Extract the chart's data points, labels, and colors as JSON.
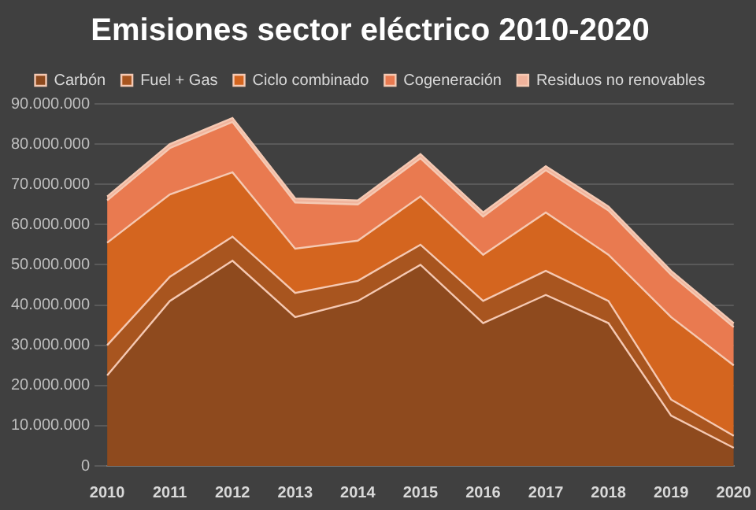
{
  "chart_data": {
    "type": "area",
    "title": "Emisiones sector eléctrico 2010-2020",
    "stacked": true,
    "categories": [
      "2010",
      "2011",
      "2012",
      "2013",
      "2014",
      "2015",
      "2016",
      "2017",
      "2018",
      "2019",
      "2020"
    ],
    "series": [
      {
        "name": "Carbón",
        "color": "#8e4a1e",
        "values": [
          22500000,
          41000000,
          51000000,
          37000000,
          41000000,
          50000000,
          35500000,
          42500000,
          35500000,
          12500000,
          4500000
        ]
      },
      {
        "name": "Fuel + Gas",
        "color": "#a8551f",
        "values": [
          7500000,
          6000000,
          6000000,
          6000000,
          5000000,
          5000000,
          5500000,
          6000000,
          5500000,
          4000000,
          3000000
        ]
      },
      {
        "name": "Ciclo combinado",
        "color": "#d4651f",
        "values": [
          25500000,
          20500000,
          16000000,
          11000000,
          10000000,
          12000000,
          11500000,
          14500000,
          11500000,
          20500000,
          17500000
        ]
      },
      {
        "name": "Cogeneración",
        "color": "#e97a50",
        "values": [
          10500000,
          11500000,
          12500000,
          11500000,
          9000000,
          9500000,
          9500000,
          10500000,
          11000000,
          10500000,
          9500000
        ]
      },
      {
        "name": "Residuos no renovables",
        "color": "#f0b39c",
        "values": [
          1000000,
          1000000,
          1000000,
          1000000,
          1000000,
          1000000,
          1000000,
          1000000,
          1000000,
          1000000,
          1000000
        ]
      }
    ],
    "ylim": [
      0,
      90000000
    ],
    "yticks": [
      0,
      {
        "value": 10000000,
        "label": "10.000.000"
      },
      {
        "value": 20000000,
        "label": "20.000.000"
      },
      {
        "value": 30000000,
        "label": "30.000.000"
      },
      {
        "value": 40000000,
        "label": "40.000.000"
      },
      {
        "value": 50000000,
        "label": "50.000.000"
      },
      {
        "value": 60000000,
        "label": "60.000.000"
      },
      {
        "value": 70000000,
        "label": "70.000.000"
      },
      {
        "value": 80000000,
        "label": "80.000.000"
      },
      {
        "value": 90000000,
        "label": "90.000.000"
      }
    ],
    "grid": "y",
    "legend": "top"
  }
}
